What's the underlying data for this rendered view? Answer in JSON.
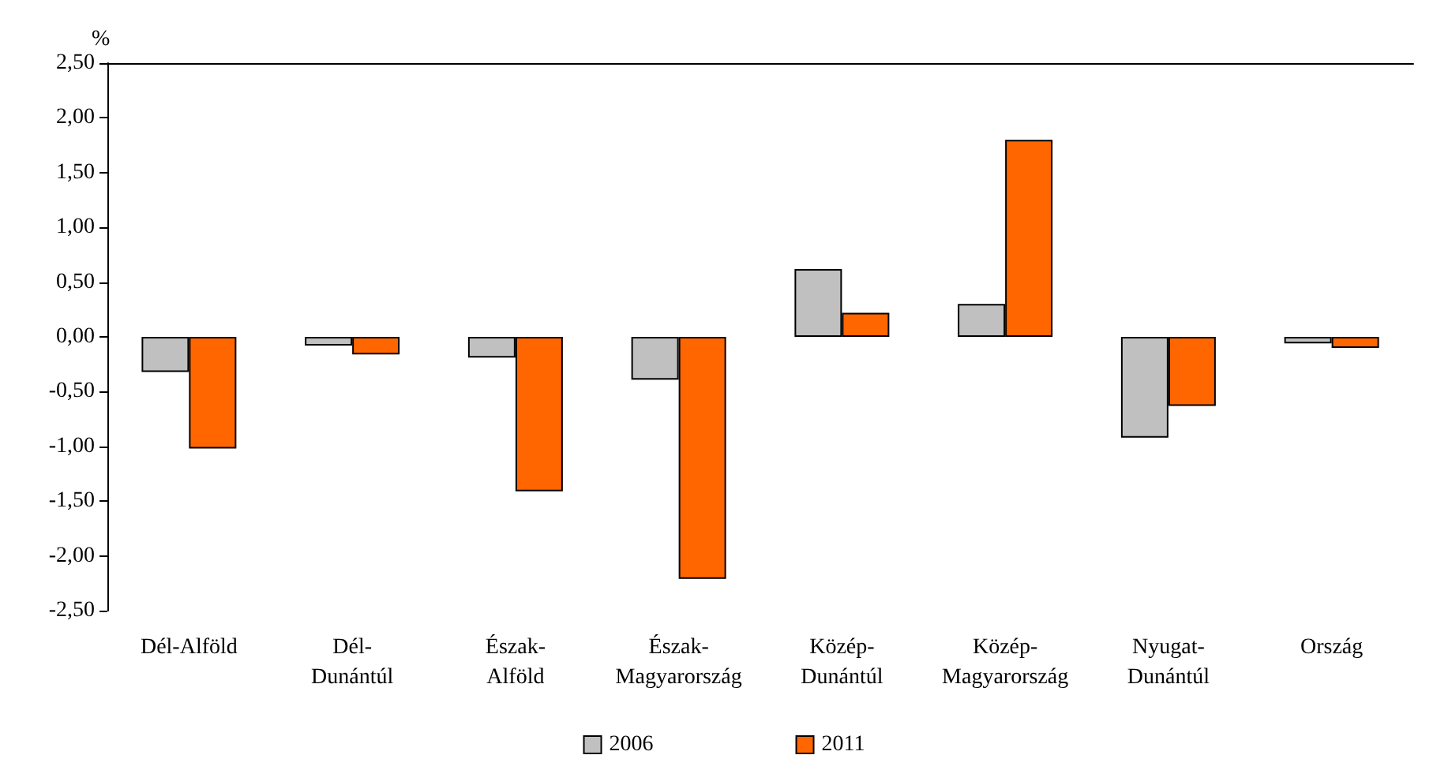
{
  "chart_data": {
    "type": "bar",
    "ylabel": "%",
    "categories": [
      "Dél-Alföld",
      "Dél-\nDunántúl",
      "Észak-\nAlföld",
      "Észak-\nMagyarország",
      "Közép-\nDunántúl",
      "Közép-\nMagyarország",
      "Nyugat-\nDunántúl",
      "Ország"
    ],
    "series": [
      {
        "name": "2006",
        "color": "#c0c0c0",
        "values": [
          -0.32,
          -0.08,
          -0.19,
          -0.39,
          0.62,
          0.3,
          -0.92,
          -0.06
        ]
      },
      {
        "name": "2011",
        "color": "#ff6600",
        "values": [
          -1.02,
          -0.16,
          -1.41,
          -2.21,
          0.22,
          1.8,
          -0.63,
          -0.1
        ]
      }
    ],
    "ylim": [
      -2.5,
      2.5
    ],
    "yticks": [
      {
        "value": -2.5,
        "label": "-2,50"
      },
      {
        "value": -2,
        "label": "-2,00"
      },
      {
        "value": -1.5,
        "label": "-1,50"
      },
      {
        "value": -1,
        "label": "-1,00"
      },
      {
        "value": -0.5,
        "label": "-0,50"
      },
      {
        "value": 0,
        "label": "0,00"
      },
      {
        "value": 0.5,
        "label": "0,50"
      },
      {
        "value": 1,
        "label": "1,00"
      },
      {
        "value": 1.5,
        "label": "1,50"
      },
      {
        "value": 2,
        "label": "2,00"
      },
      {
        "value": 2.5,
        "label": "2,50"
      }
    ],
    "grid": false,
    "legend": "bottom"
  }
}
